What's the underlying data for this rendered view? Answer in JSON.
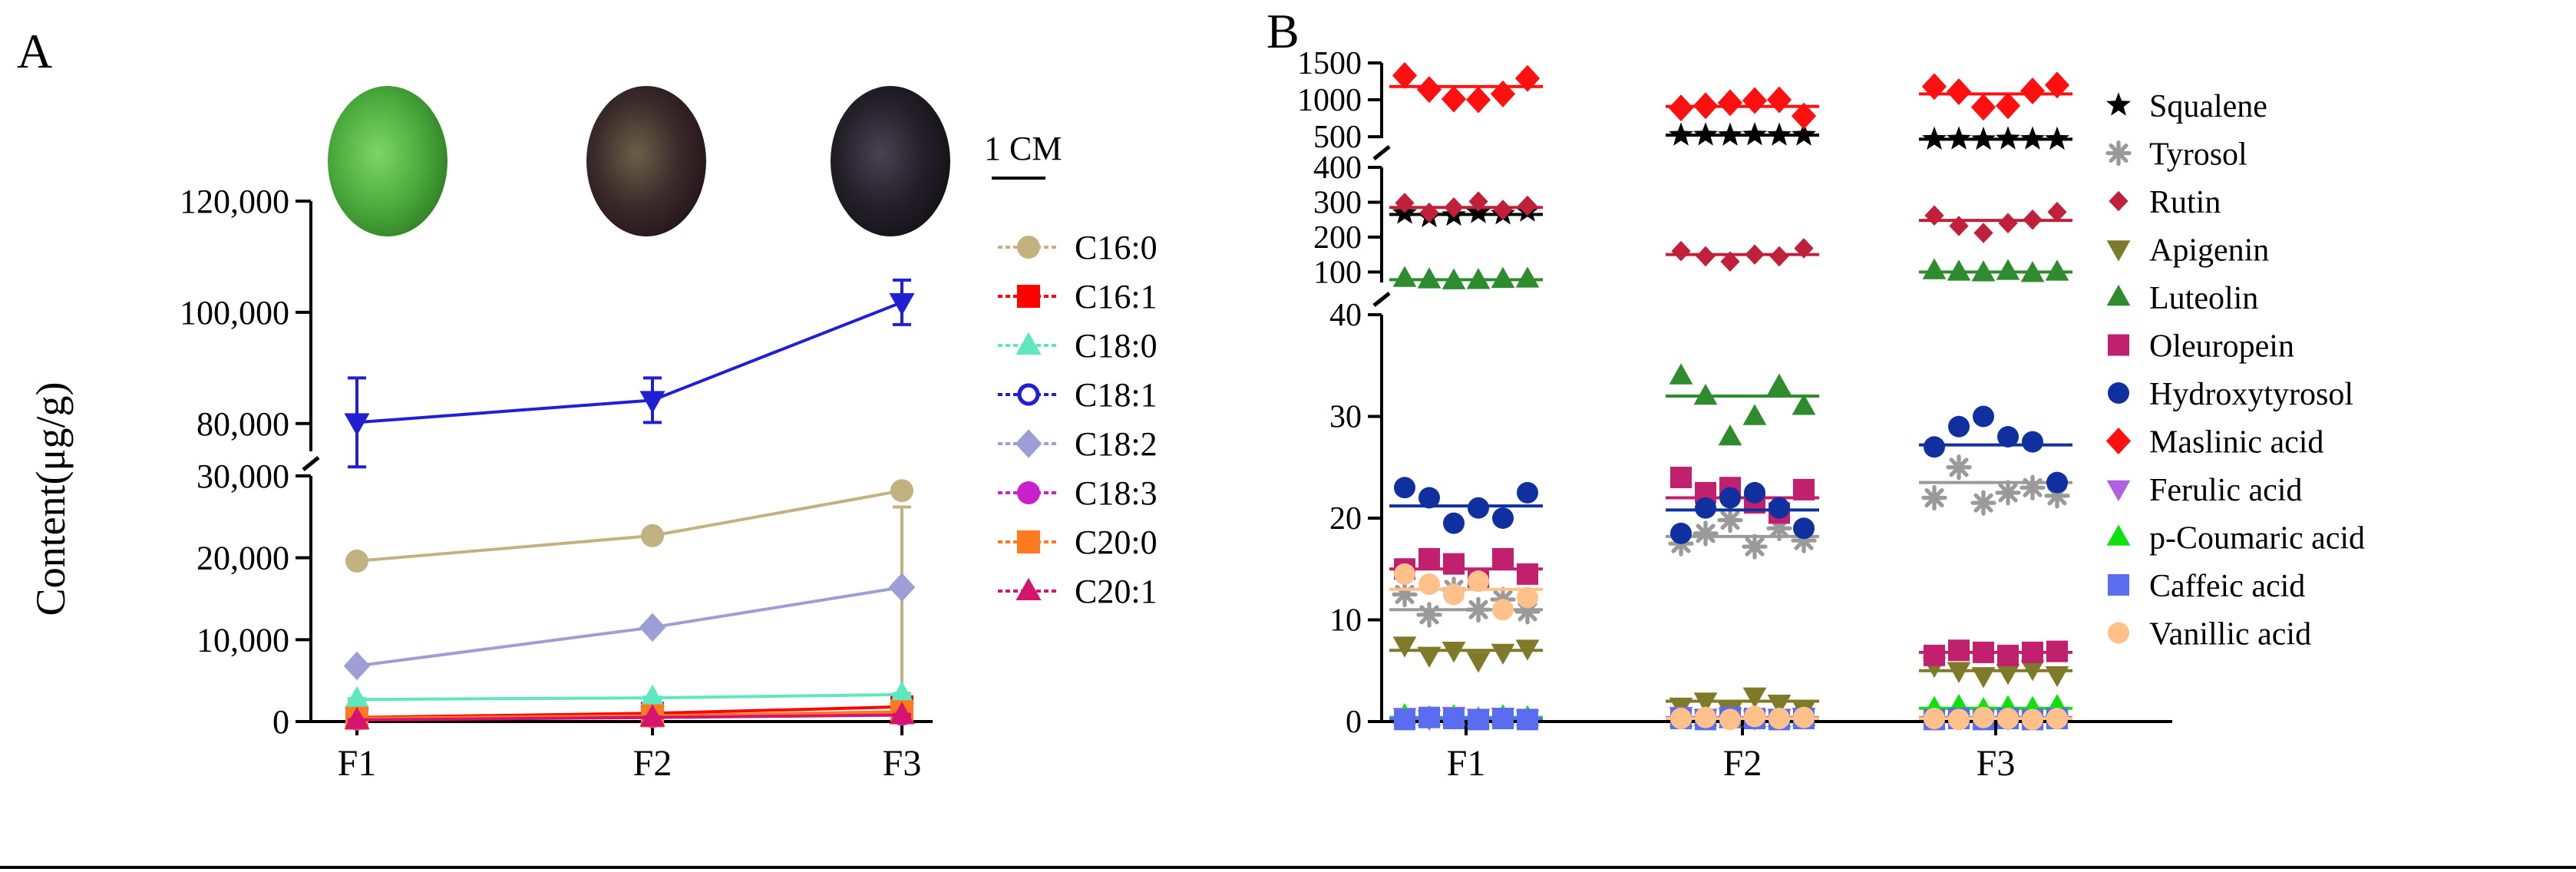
{
  "chart_data": [
    {
      "type": "line",
      "panel_label": "A",
      "ylabel": "Content(μg/g)",
      "scale_bar_label": "1 CM",
      "categories": [
        "F1",
        "F2",
        "F3"
      ],
      "y_axis_segments": [
        {
          "range": [
            0,
            30000
          ],
          "ticks": [
            0,
            10000,
            20000,
            30000
          ],
          "tick_labels": [
            "0",
            "10,000",
            "20,000",
            "30,000"
          ]
        },
        {
          "range": [
            75000,
            120000
          ],
          "ticks": [
            80000,
            100000,
            120000
          ],
          "tick_labels": [
            "80,000",
            "100,000",
            "120,000"
          ]
        }
      ],
      "images": [
        "green olive fruit (F1)",
        "purple-green olive fruit (F2)",
        "black olive fruit (F3)"
      ],
      "series": [
        {
          "name": "C16:0",
          "color": "#C2B280",
          "marker": "circle",
          "values": [
            19600,
            22700,
            28200
          ],
          "errors": [
            500,
            700,
            2000
          ]
        },
        {
          "name": "C16:1",
          "color": "#FF0000",
          "marker": "square",
          "values": [
            500,
            1000,
            1800
          ],
          "errors": [
            100,
            150,
            200
          ]
        },
        {
          "name": "C18:0",
          "color": "#5FE8BF",
          "marker": "triangle-up",
          "values": [
            2700,
            2900,
            3300
          ],
          "errors": [
            100,
            100,
            150
          ]
        },
        {
          "name": "C18:1",
          "color": "#1F1FD4",
          "marker": "open-circle",
          "values": [
            80200,
            84200,
            101800
          ],
          "errors": [
            8000,
            4000,
            4000
          ]
        },
        {
          "name": "C18:2",
          "color": "#9E9ED6",
          "marker": "diamond",
          "values": [
            6800,
            11500,
            16400
          ],
          "errors": [
            200,
            300,
            400
          ]
        },
        {
          "name": "C18:3",
          "color": "#CC1FCC",
          "marker": "circle",
          "values": [
            300,
            600,
            900
          ],
          "errors": [
            50,
            80,
            100
          ]
        },
        {
          "name": "C20:0",
          "color": "#FF7A1F",
          "marker": "square",
          "values": [
            400,
            700,
            1200
          ],
          "errors": [
            50,
            80,
            100
          ]
        },
        {
          "name": "C20:1",
          "color": "#D4146F",
          "marker": "triangle-up",
          "values": [
            200,
            500,
            800
          ],
          "errors": [
            40,
            60,
            80
          ]
        }
      ]
    },
    {
      "type": "scatter",
      "panel_label": "B",
      "categories": [
        "F1",
        "F2",
        "F3"
      ],
      "y_axis_segments": [
        {
          "range": [
            0,
            40
          ],
          "ticks": [
            0,
            10,
            20,
            30,
            40
          ],
          "tick_labels": [
            "0",
            "10",
            "20",
            "30",
            "40"
          ]
        },
        {
          "range": [
            70,
            400
          ],
          "ticks": [
            100,
            200,
            300,
            400
          ],
          "tick_labels": [
            "100",
            "200",
            "300",
            "400"
          ]
        },
        {
          "range": [
            480,
            1500
          ],
          "ticks": [
            500,
            1000,
            1500
          ],
          "tick_labels": [
            "500",
            "1000",
            "1500"
          ]
        }
      ],
      "series": [
        {
          "name": "Squalene",
          "color": "#000000",
          "marker": "star",
          "points": [
            [
              268,
              258,
              262,
              270,
              266,
              274
            ],
            [
              520,
              522,
              518,
              524,
              519,
              521
            ],
            [
              465,
              468,
              462,
              470,
              466,
              464
            ]
          ],
          "means": [
            265,
            521,
            466
          ]
        },
        {
          "name": "Tyrosol",
          "color": "#9A9A9A",
          "marker": "asterisk",
          "points": [
            [
              12.5,
              10.5,
              13.0,
              11.0,
              12.0,
              10.8
            ],
            [
              17.5,
              18.5,
              19.8,
              17.2,
              19.0,
              17.8
            ],
            [
              22.0,
              25.0,
              21.5,
              22.5,
              23.0,
              22.2
            ]
          ],
          "means": [
            11.0,
            18.2,
            23.5
          ]
        },
        {
          "name": "Rutin",
          "color": "#C0203A",
          "marker": "small-diamond",
          "points": [
            [
              298,
              270,
              285,
              302,
              278,
              290
            ],
            [
              160,
              145,
              130,
              150,
              145,
              168
            ],
            [
              262,
              232,
              212,
              240,
              250,
              272
            ]
          ],
          "means": [
            285,
            150,
            248
          ]
        },
        {
          "name": "Apigenin",
          "color": "#7F7A2A",
          "marker": "triangle-down",
          "points": [
            [
              7.5,
              6.5,
              7.0,
              6.0,
              6.8,
              7.2
            ],
            [
              1.5,
              2.0,
              1.0,
              2.5,
              1.8,
              1.2
            ],
            [
              5.5,
              5.0,
              4.5,
              4.8,
              5.2,
              4.6
            ]
          ],
          "means": [
            7.0,
            2.0,
            5.0
          ]
        },
        {
          "name": "Luteolin",
          "color": "#2E8B2E",
          "marker": "triangle-up",
          "points": [
            [
              82,
              78,
              75,
              76,
              79,
              80
            ],
            [
              34,
              32,
              28,
              30,
              33,
              31
            ],
            [
              104,
              100,
              98,
              102,
              96,
              100
            ]
          ],
          "means": [
            78,
            32,
            100
          ]
        },
        {
          "name": "Oleuropein",
          "color": "#C0206E",
          "marker": "square",
          "points": [
            [
              15.0,
              16.0,
              15.5,
              14.0,
              16.0,
              14.5
            ],
            [
              24.0,
              22.5,
              23.0,
              21.5,
              20.5,
              22.8
            ],
            [
              6.5,
              7.0,
              6.8,
              6.5,
              6.8,
              6.9
            ]
          ],
          "means": [
            15.0,
            22.0,
            6.8
          ]
        },
        {
          "name": "Hydroxytyrosol",
          "color": "#1030A0",
          "marker": "circle",
          "points": [
            [
              23.0,
              22.0,
              19.5,
              21.0,
              20.0,
              22.5
            ],
            [
              18.5,
              21.0,
              22.0,
              22.5,
              21.0,
              19.0
            ],
            [
              27.0,
              29.0,
              30.0,
              28.0,
              27.5,
              23.5
            ]
          ],
          "means": [
            21.2,
            20.8,
            27.2
          ]
        },
        {
          "name": "Maslinic acid",
          "color": "#FF1010",
          "marker": "diamond",
          "points": [
            [
              1330,
              1140,
              1010,
              1000,
              1080,
              1290
            ],
            [
              890,
              920,
              960,
              990,
              1000,
              780
            ],
            [
              1180,
              1110,
              900,
              920,
              1120,
              1200
            ]
          ],
          "means": [
            1180,
            910,
            1080
          ]
        },
        {
          "name": "Ferulic acid",
          "color": "#B060E0",
          "marker": "triangle-down",
          "points": [
            [
              0.5,
              0.3,
              0.6,
              0.4,
              0.5,
              0.3
            ],
            [
              0.6,
              0.4,
              0.5,
              0.3,
              0.4,
              0.5
            ],
            [
              0.5,
              0.4,
              0.6,
              0.3,
              0.5,
              0.4
            ]
          ],
          "means": [
            0.4,
            0.4,
            0.4
          ]
        },
        {
          "name": "p-Coumaric acid",
          "color": "#10E010",
          "marker": "triangle-up",
          "points": [
            [
              0.6,
              0.4,
              0.5,
              0.3,
              0.5,
              0.4
            ],
            [
              0.3,
              0.4,
              0.2,
              0.3,
              0.3,
              0.4
            ],
            [
              1.3,
              1.5,
              1.2,
              1.4,
              1.3,
              1.5
            ]
          ],
          "means": [
            0.4,
            0.3,
            1.3
          ]
        },
        {
          "name": "Caffeic acid",
          "color": "#5A6CF0",
          "marker": "square",
          "points": [
            [
              0.2,
              0.4,
              0.3,
              0.2,
              0.3,
              0.2
            ],
            [
              0.3,
              0.2,
              0.4,
              0.3,
              0.2,
              0.3
            ],
            [
              0.2,
              0.3,
              0.2,
              0.3,
              0.2,
              0.3
            ]
          ],
          "means": [
            0.3,
            0.3,
            0.3
          ]
        },
        {
          "name": "Vanillic acid",
          "color": "#FFC08A",
          "marker": "circle",
          "points": [
            [
              14.5,
              13.5,
              12.5,
              13.8,
              11.0,
              12.2
            ],
            [
              0.3,
              0.4,
              0.2,
              0.5,
              0.3,
              0.4
            ],
            [
              0.3,
              0.2,
              0.4,
              0.3,
              0.2,
              0.3
            ]
          ],
          "means": [
            13.0,
            0.3,
            0.3
          ]
        }
      ]
    }
  ]
}
